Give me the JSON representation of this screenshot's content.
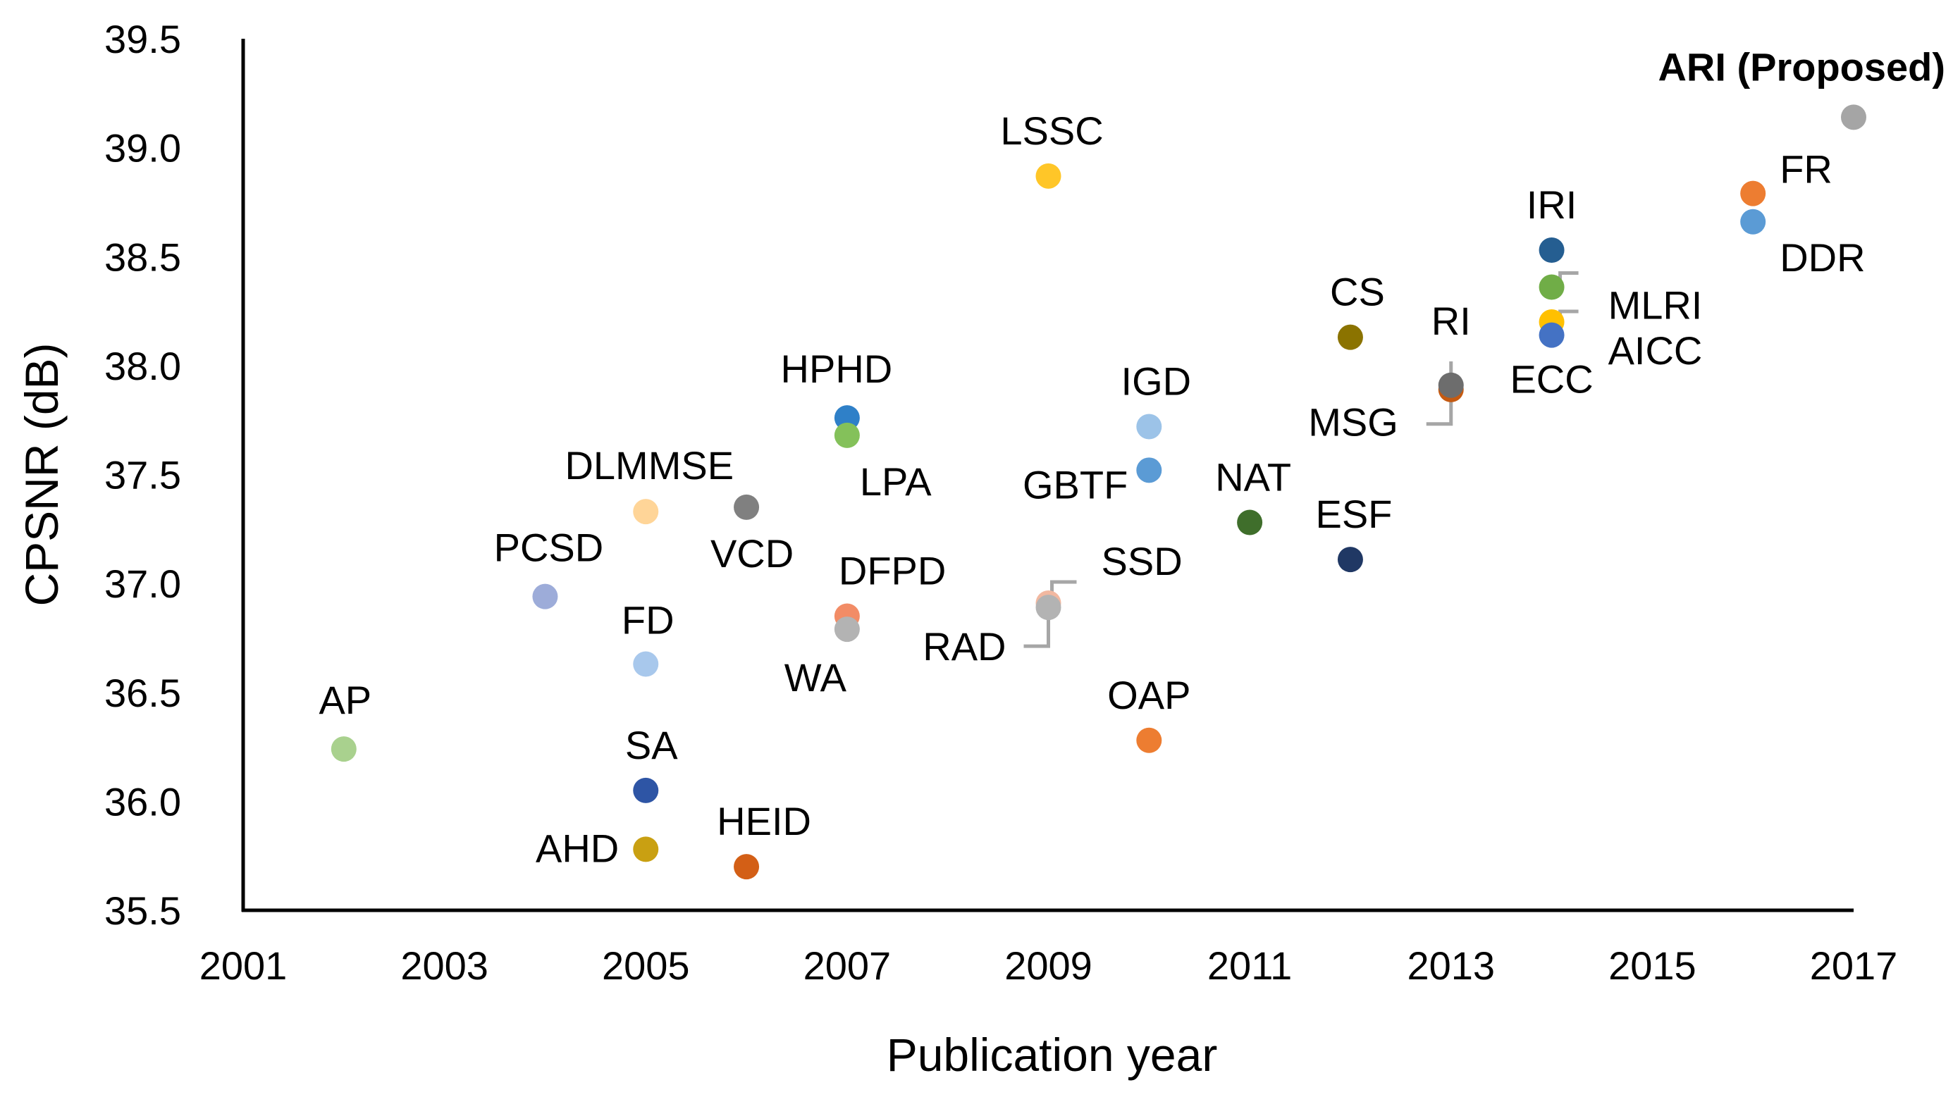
{
  "chart_data": {
    "type": "scatter",
    "title": "",
    "xlabel": "Publication year",
    "ylabel": "CPSNR (dB)",
    "xlim": [
      2001,
      2017
    ],
    "ylim": [
      35.5,
      39.5
    ],
    "xticks": [
      "2001",
      "2003",
      "2005",
      "2007",
      "2009",
      "2011",
      "2013",
      "2015",
      "2017"
    ],
    "yticks": [
      "35.5",
      "36.0",
      "36.5",
      "37.0",
      "37.5",
      "38.0",
      "38.5",
      "39.0",
      "39.5"
    ],
    "grid": false,
    "legend": "none",
    "highlight_color": "#ff0000",
    "points": [
      {
        "label": "AP",
        "x": 2002,
        "y": 36.24,
        "color": "#a9d18e",
        "label_anchor": "middle"
      },
      {
        "label": "PCSD",
        "x": 2004,
        "y": 36.94,
        "color": "#9dacd9",
        "label_anchor": "middle"
      },
      {
        "label": "DLMMSE",
        "x": 2005,
        "y": 37.33,
        "color": "#ffd598",
        "label_anchor": "middle"
      },
      {
        "label": "FD",
        "x": 2005,
        "y": 36.63,
        "color": "#a8c8ec",
        "label_anchor": "middle"
      },
      {
        "label": "SA",
        "x": 2005,
        "y": 36.05,
        "color": "#2e55a5",
        "label_anchor": "middle"
      },
      {
        "label": "AHD",
        "x": 2005,
        "y": 35.78,
        "color": "#c9a012",
        "label_anchor": "end"
      },
      {
        "label": "VCD",
        "x": 2006,
        "y": 37.35,
        "color": "#808080",
        "label_anchor": "middle"
      },
      {
        "label": "HEID",
        "x": 2006,
        "y": 35.7,
        "color": "#d35f16",
        "label_anchor": "middle"
      },
      {
        "label": "HPHD",
        "x": 2007,
        "y": 37.76,
        "color": "#2f80c8",
        "label_anchor": "middle"
      },
      {
        "label": "LPA",
        "x": 2007,
        "y": 37.68,
        "color": "#84c15a",
        "label_anchor": "start"
      },
      {
        "label": "DFPD",
        "x": 2007,
        "y": 36.85,
        "color": "#f28c66",
        "label_anchor": "start"
      },
      {
        "label": "WA",
        "x": 2007,
        "y": 36.79,
        "color": "#b3b3b3",
        "label_anchor": "middle"
      },
      {
        "label": "LSSC",
        "x": 2009,
        "y": 38.87,
        "color": "#ffc628",
        "label_anchor": "middle"
      },
      {
        "label": "SSD",
        "x": 2009,
        "y": 36.91,
        "color": "#f2b8a0",
        "label_anchor": "start"
      },
      {
        "label": "RAD",
        "x": 2009,
        "y": 36.89,
        "color": "#b3b3b3",
        "label_anchor": "end"
      },
      {
        "label": "IGD",
        "x": 2010,
        "y": 37.72,
        "color": "#9cc3e8",
        "label_anchor": "middle"
      },
      {
        "label": "GBTF",
        "x": 2010,
        "y": 37.52,
        "color": "#5b9bd5",
        "label_anchor": "end"
      },
      {
        "label": "OAP",
        "x": 2010,
        "y": 36.28,
        "color": "#ed7d31",
        "label_anchor": "middle"
      },
      {
        "label": "NAT",
        "x": 2011,
        "y": 37.28,
        "color": "#3f6e2b",
        "label_anchor": "middle"
      },
      {
        "label": "CS",
        "x": 2012,
        "y": 38.13,
        "color": "#8b7300",
        "label_anchor": "middle"
      },
      {
        "label": "ESF",
        "x": 2012,
        "y": 37.11,
        "color": "#203864",
        "label_anchor": "middle"
      },
      {
        "label": "RI",
        "x": 2013,
        "y": 37.89,
        "color": "#c55a11",
        "label_anchor": "middle"
      },
      {
        "label": "MSG",
        "x": 2013,
        "y": 37.91,
        "color": "#6d6d6d",
        "label_anchor": "end"
      },
      {
        "label": "IRI",
        "x": 2014,
        "y": 38.53,
        "color": "#255e91",
        "label_anchor": "middle"
      },
      {
        "label": "MLRI",
        "x": 2014,
        "y": 38.36,
        "color": "#70ad47",
        "label_anchor": "start"
      },
      {
        "label": "AICC",
        "x": 2014,
        "y": 38.2,
        "color": "#ffc000",
        "label_anchor": "start"
      },
      {
        "label": "ECC",
        "x": 2014,
        "y": 38.14,
        "color": "#4472c4",
        "label_anchor": "middle"
      },
      {
        "label": "FR",
        "x": 2016,
        "y": 38.79,
        "color": "#ed7d31",
        "label_anchor": "start"
      },
      {
        "label": "DDR",
        "x": 2016,
        "y": 38.66,
        "color": "#5b9bd5",
        "label_anchor": "start"
      },
      {
        "label": "ARI (Proposed)",
        "x": 2017,
        "y": 39.14,
        "color": "#a5a5a5",
        "label_anchor": "end",
        "highlight": true
      }
    ]
  }
}
